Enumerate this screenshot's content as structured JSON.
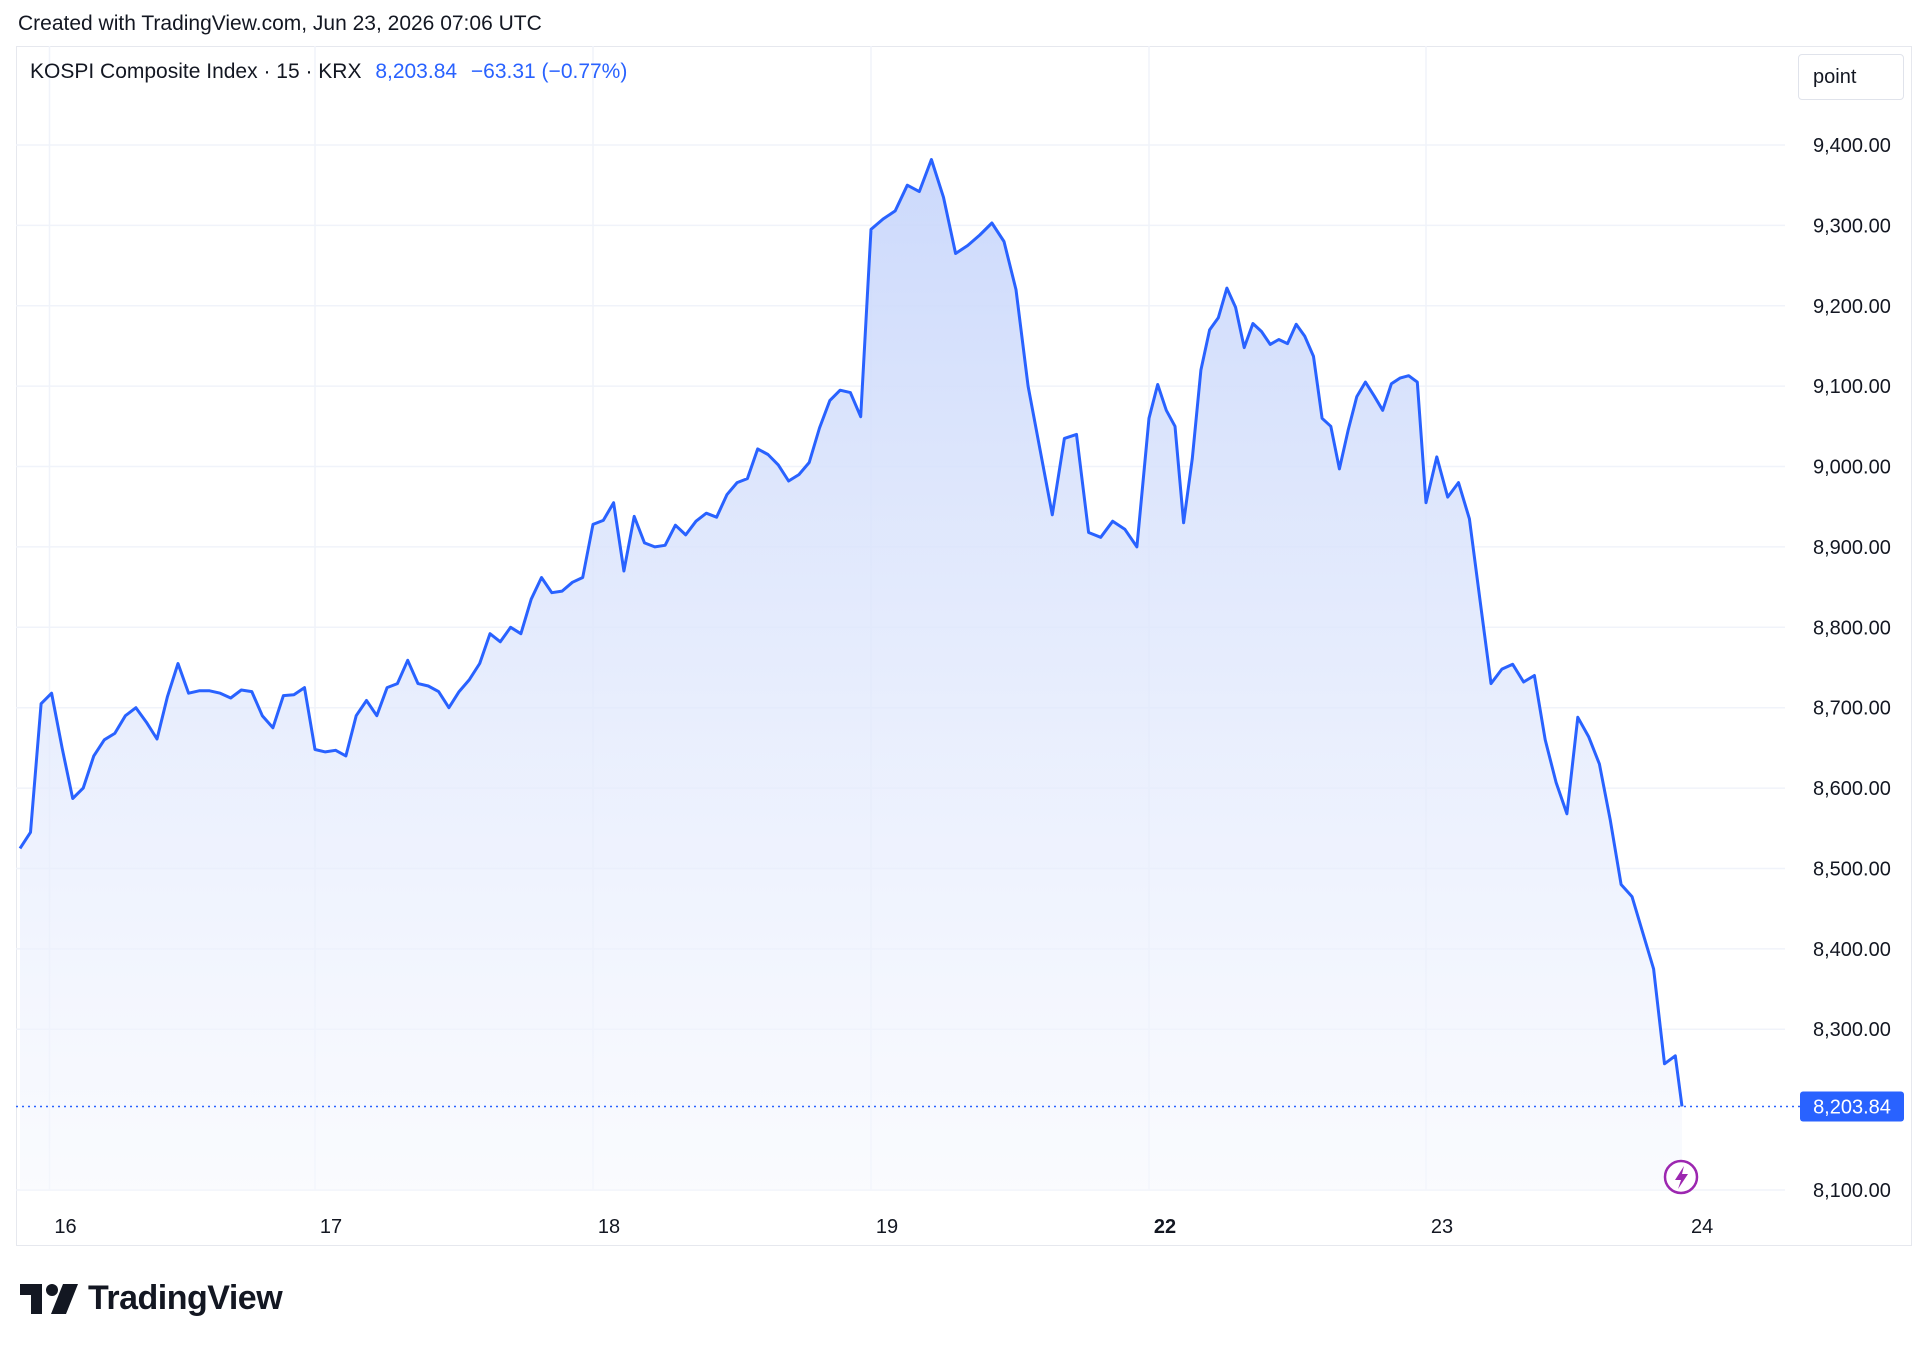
{
  "header": {
    "created_note": "Created with TradingView.com, Jun 23, 2026 07:06 UTC"
  },
  "legend": {
    "symbol": "KOSPI Composite Index · 15 · KRX",
    "last": "8,203.84",
    "change": "−63.31 (−0.77%)"
  },
  "unit_label": "point",
  "brand": {
    "name": "TradingView",
    "icon": "tradingview-logo-icon"
  },
  "colors": {
    "line": "#2962ff",
    "fill_top": "#c9d7fb",
    "fill_bottom": "#f6f8fe",
    "grid": "#f0f3fa",
    "price_tag": "#2962ff"
  },
  "chart_data": {
    "type": "area",
    "ylim": [
      8080,
      9500
    ],
    "y_ticks": [
      8100,
      8200,
      8300,
      8400,
      8500,
      8600,
      8700,
      8800,
      8900,
      9000,
      9100,
      9200,
      9300,
      9400
    ],
    "y_tick_labels": [
      "8,100.00",
      "8,300.00",
      "8,400.00",
      "8,500.00",
      "8,600.00",
      "8,700.00",
      "8,800.00",
      "8,900.00",
      "9,000.00",
      "9,100.00",
      "9,200.00",
      "9,300.00",
      "9,400.00"
    ],
    "y_tick_values": [
      8100,
      8300,
      8400,
      8500,
      8600,
      8700,
      8800,
      8900,
      9000,
      9100,
      9200,
      9300,
      9400
    ],
    "x_tick_labels": [
      "16",
      "17",
      "18",
      "19",
      "22",
      "23",
      "24"
    ],
    "x_tick_bold": [
      false,
      false,
      false,
      false,
      true,
      false,
      false
    ],
    "x_tick_index": [
      0.1,
      1,
      2,
      3,
      4,
      5,
      5.96
    ],
    "last_value": 8203.84,
    "last_value_label": "8,203.84",
    "values": [
      8525,
      8545,
      8705,
      8718,
      8650,
      8587,
      8600,
      8640,
      8660,
      8668,
      8690,
      8700,
      8682,
      8661,
      8714,
      8755,
      8718,
      8721,
      8721,
      8718,
      8712,
      8722,
      8720,
      8690,
      8675,
      8715,
      8716,
      8725,
      8648,
      8645,
      8647,
      8640,
      8690,
      8709,
      8690,
      8725,
      8730,
      8759,
      8730,
      8727,
      8720,
      8700,
      8720,
      8735,
      8755,
      8792,
      8782,
      8800,
      8792,
      8835,
      8862,
      8843,
      8845,
      8856,
      8862,
      8928,
      8933,
      8955,
      8870,
      8938,
      8905,
      8900,
      8902,
      8927,
      8915,
      8932,
      8942,
      8937,
      8965,
      8980,
      8985,
      9022,
      9015,
      9002,
      8982,
      8990,
      9005,
      9048,
      9082,
      9095,
      9092,
      9062,
      9295,
      9308,
      9318,
      9350,
      9342,
      9382,
      9335,
      9265,
      9275,
      9288,
      9303,
      9280,
      9220,
      9100,
      9020,
      8940,
      9035,
      9040,
      8918,
      8912,
      8932,
      8922,
      8900,
      9060,
      9102,
      9070,
      9050,
      8930,
      9010,
      9120,
      9170,
      9185,
      9222,
      9198,
      9148,
      9178,
      9168,
      9152,
      9158,
      9153,
      9177,
      9162,
      9137,
      9060,
      9050,
      8997,
      9045,
      9087,
      9105,
      9088,
      9070,
      9103,
      9110,
      9113,
      9105,
      8955,
      9012,
      8962,
      8980,
      8935,
      8832,
      8730,
      8748,
      8754,
      8732,
      8740,
      8660,
      8607,
      8568,
      8688,
      8664,
      8630,
      8560,
      8480,
      8465,
      8420,
      8375,
      8257,
      8267,
      8204
    ],
    "day_breaks": [
      0,
      28,
      55,
      82,
      105,
      137,
      162
    ]
  }
}
